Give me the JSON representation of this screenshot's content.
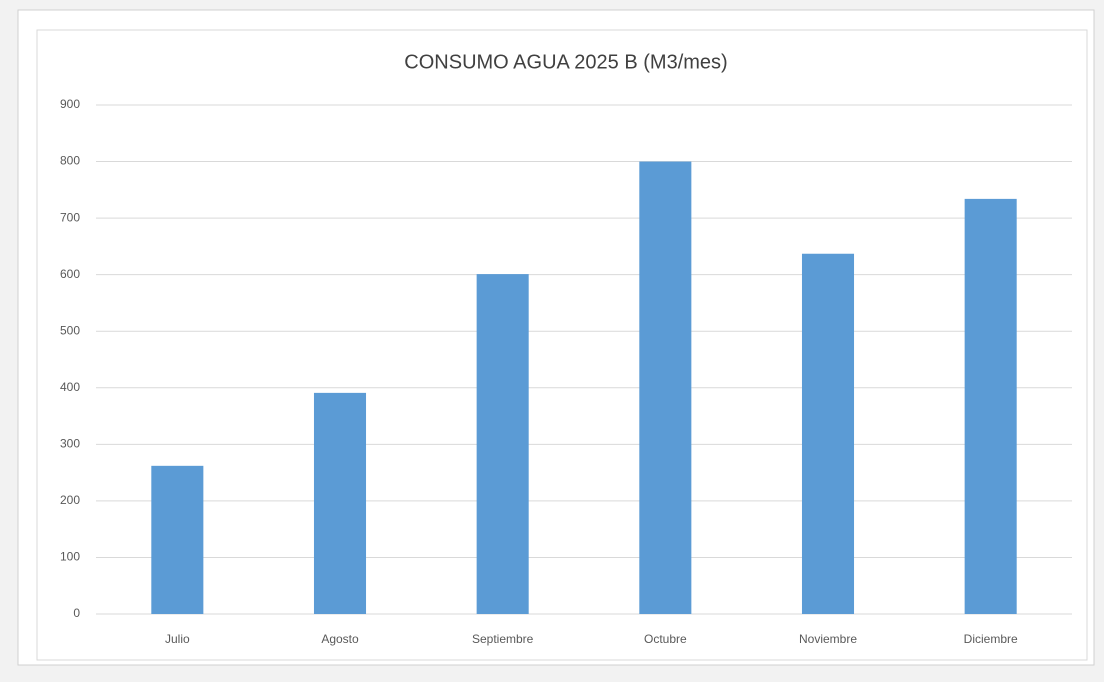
{
  "chart_data": {
    "type": "bar",
    "title": "CONSUMO AGUA 2025 B (M3/mes)",
    "categories": [
      "Julio",
      "Agosto",
      "Septiembre",
      "Octubre",
      "Noviembre",
      "Diciembre"
    ],
    "values": [
      262,
      391,
      601,
      800,
      637,
      734
    ],
    "color": "#5b9bd5",
    "ylim": [
      0,
      900
    ],
    "yticks": [
      0,
      100,
      200,
      300,
      400,
      500,
      600,
      700,
      800,
      900
    ],
    "grid": true
  }
}
